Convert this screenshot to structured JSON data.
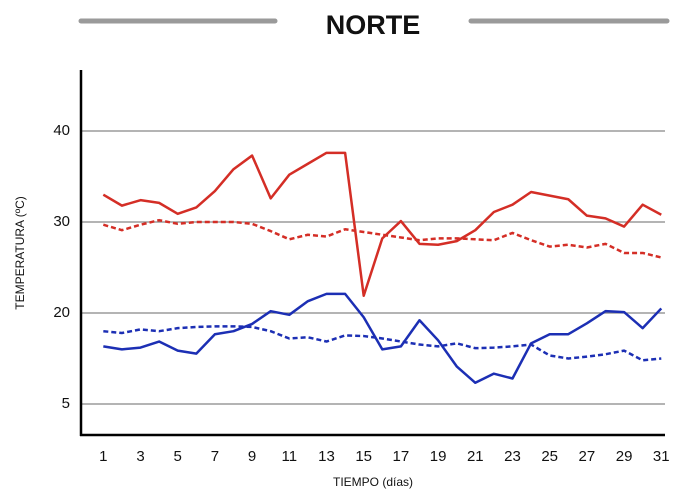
{
  "chart_data": {
    "type": "line",
    "title": "NORTE",
    "xlabel": "TIEMPO (días)",
    "ylabel": "TEMPERATURA (ºC)",
    "x": [
      1,
      2,
      3,
      4,
      5,
      6,
      7,
      8,
      9,
      10,
      11,
      12,
      13,
      14,
      15,
      16,
      17,
      18,
      19,
      20,
      21,
      22,
      23,
      24,
      25,
      26,
      27,
      28,
      29,
      30,
      31
    ],
    "xlim": [
      -0.2,
      31.2
    ],
    "xticks": [
      1,
      3,
      5,
      7,
      9,
      11,
      13,
      15,
      17,
      19,
      21,
      23,
      25,
      27,
      29,
      31
    ],
    "ylim": [
      0,
      47
    ],
    "yticks": [
      5,
      20,
      30,
      40
    ],
    "grid": true,
    "series": [
      {
        "color": "#d42e26",
        "dash": false,
        "values": [
          33.0,
          31.8,
          32.4,
          32.1,
          30.9,
          31.6,
          33.4,
          35.8,
          37.3,
          32.6,
          35.2,
          36.4,
          37.6,
          37.6,
          21.9,
          28.2,
          30.1,
          27.6,
          27.5,
          27.9,
          29.1,
          31.1,
          31.9,
          33.3,
          32.9,
          32.5,
          30.7,
          30.4,
          29.5,
          31.9,
          30.8
        ]
      },
      {
        "color": "#d42e26",
        "dash": true,
        "values": [
          29.7,
          29.1,
          29.7,
          30.2,
          29.8,
          30.0,
          30.0,
          30.0,
          29.8,
          29.0,
          28.1,
          28.6,
          28.4,
          29.2,
          28.9,
          28.6,
          28.3,
          28.0,
          28.2,
          28.2,
          28.1,
          28.0,
          28.8,
          28.0,
          27.3,
          27.5,
          27.2,
          27.6,
          26.6,
          26.6,
          26.1
        ]
      },
      {
        "color": "#1c2fb4",
        "dash": false,
        "values": [
          14.5,
          14.0,
          14.3,
          15.3,
          13.8,
          13.3,
          16.5,
          17.0,
          18.2,
          20.2,
          19.7,
          21.3,
          22.1,
          22.1,
          19.3,
          14.0,
          14.5,
          18.8,
          15.5,
          11.2,
          8.5,
          10.0,
          9.2,
          15.0,
          16.5,
          16.5,
          18.3,
          20.2,
          20.1,
          17.5,
          20.5
        ]
      },
      {
        "color": "#1c2fb4",
        "dash": true,
        "values": [
          17.0,
          16.7,
          17.3,
          17.0,
          17.5,
          17.7,
          17.8,
          17.8,
          17.7,
          17.0,
          15.8,
          16.0,
          15.3,
          16.3,
          16.2,
          15.8,
          15.3,
          14.8,
          14.5,
          15.0,
          14.2,
          14.3,
          14.5,
          14.8,
          13.0,
          12.5,
          12.8,
          13.2,
          13.8,
          12.2,
          12.5
        ]
      }
    ]
  }
}
